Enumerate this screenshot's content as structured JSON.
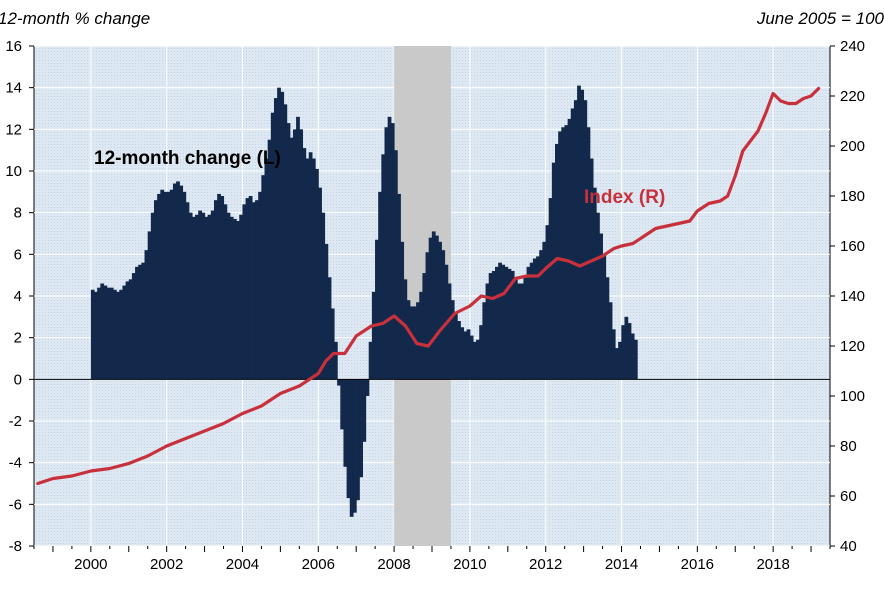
{
  "chart_data": {
    "type": "bar+line",
    "title": "",
    "left_axis_title": "12-month % change",
    "right_axis_title": "June 2005 = 100",
    "left_ylim": [
      -8,
      16
    ],
    "left_ticks": [
      "16",
      "14",
      "12",
      "10",
      "8",
      "6",
      "4",
      "2",
      "0",
      "-2",
      "-4",
      "-6",
      "-8"
    ],
    "right_ylim": [
      40,
      240
    ],
    "right_ticks": [
      "240",
      "220",
      "200",
      "180",
      "160",
      "140",
      "120",
      "100",
      "80",
      "60",
      "40"
    ],
    "x_range": [
      1998.5,
      2019.5
    ],
    "x_ticks": [
      "2000",
      "2002",
      "2004",
      "2006",
      "2008",
      "2010",
      "2012",
      "2014",
      "2016",
      "2018"
    ],
    "recession_shading": [
      2008.0,
      2009.5
    ],
    "grid": true,
    "series": [
      {
        "name": "12-month change (L)",
        "kind": "bar",
        "axis": "left",
        "color": "#13294b",
        "label_color": "#000000",
        "start": 2000.0,
        "step": 0.0833,
        "values": [
          4.3,
          4.2,
          4.4,
          4.6,
          4.5,
          4.4,
          4.4,
          4.3,
          4.2,
          4.3,
          4.5,
          4.7,
          4.8,
          5.1,
          5.4,
          5.5,
          5.6,
          6.2,
          7.1,
          8.0,
          8.6,
          8.9,
          9.1,
          9.0,
          9.0,
          9.1,
          9.4,
          9.5,
          9.3,
          9.0,
          8.5,
          8.0,
          7.8,
          7.9,
          8.1,
          8.0,
          7.8,
          7.9,
          8.1,
          8.6,
          8.9,
          8.8,
          8.4,
          8.0,
          7.8,
          7.7,
          7.6,
          7.9,
          8.4,
          8.7,
          8.8,
          8.5,
          8.6,
          9.0,
          9.8,
          10.6,
          11.5,
          12.8,
          13.5,
          14.0,
          13.8,
          13.2,
          12.3,
          11.6,
          12.0,
          12.6,
          12.0,
          11.1,
          10.6,
          10.9,
          10.6,
          10.1,
          9.2,
          8.0,
          6.5,
          4.9,
          3.4,
          1.8,
          -0.3,
          -2.4,
          -4.2,
          -5.7,
          -6.6,
          -6.4,
          -5.8,
          -4.7,
          -3.0,
          -0.8,
          1.8,
          4.2,
          6.7,
          9.0,
          10.8,
          12.1,
          12.6,
          12.3,
          11.0,
          8.9,
          6.6,
          4.8,
          3.8,
          3.5,
          3.5,
          3.7,
          4.2,
          5.1,
          6.1,
          6.8,
          7.1,
          6.9,
          6.6,
          6.2,
          5.5,
          4.6,
          3.8,
          3.2,
          2.8,
          2.5,
          2.3,
          2.4,
          2.1,
          1.8,
          1.9,
          2.6,
          3.7,
          4.6,
          5.1,
          5.2,
          5.4,
          5.6,
          5.5,
          5.4,
          5.3,
          5.2,
          4.9,
          4.6,
          4.6,
          4.9,
          5.4,
          5.6,
          5.8,
          5.9,
          6.2,
          6.6,
          7.4,
          8.7,
          10.4,
          11.3,
          11.9,
          12.1,
          12.2,
          12.5,
          13.0,
          13.4,
          14.1,
          13.9,
          13.4,
          12.1,
          10.6,
          9.2,
          8.0,
          7.0,
          6.0,
          4.9,
          3.7,
          2.4,
          1.5,
          1.8,
          2.6,
          3.0,
          2.7,
          2.2,
          1.9
        ]
      },
      {
        "name": "Index (R)",
        "kind": "line",
        "axis": "right",
        "color": "#c8303b",
        "label_color": "#c8303b",
        "x": [
          1998.6,
          1999.0,
          1999.5,
          2000.0,
          2000.5,
          2001.0,
          2001.5,
          2002.0,
          2002.5,
          2003.0,
          2003.5,
          2004.0,
          2004.5,
          2005.0,
          2005.5,
          2006.0,
          2006.2,
          2006.4,
          2006.7,
          2007.0,
          2007.4,
          2007.7,
          2008.0,
          2008.3,
          2008.6,
          2008.9,
          2009.2,
          2009.6,
          2010.0,
          2010.3,
          2010.6,
          2010.9,
          2011.2,
          2011.5,
          2011.8,
          2012.0,
          2012.3,
          2012.6,
          2012.9,
          2013.2,
          2013.5,
          2013.8,
          2014.0,
          2014.3,
          2014.6,
          2014.9,
          2015.2,
          2015.5,
          2015.8,
          2016.0,
          2016.3,
          2016.6,
          2016.8,
          2017.0,
          2017.2,
          2017.4,
          2017.6,
          2017.8,
          2018.0,
          2018.2,
          2018.4,
          2018.6,
          2018.8,
          2019.0,
          2019.2
        ],
        "values": [
          65,
          67,
          68,
          70,
          71,
          73,
          76,
          80,
          83,
          86,
          89,
          93,
          96,
          101,
          104,
          109,
          114,
          117,
          117,
          124,
          128,
          129,
          132,
          128,
          121,
          120,
          126,
          133,
          136,
          140,
          139,
          141,
          147,
          148,
          148,
          151,
          155,
          154,
          152,
          154,
          156,
          159,
          160,
          161,
          164,
          167,
          168,
          169,
          170,
          174,
          177,
          178,
          180,
          188,
          198,
          202,
          206,
          213,
          221,
          218,
          217,
          217,
          219,
          220,
          223
        ]
      }
    ]
  }
}
